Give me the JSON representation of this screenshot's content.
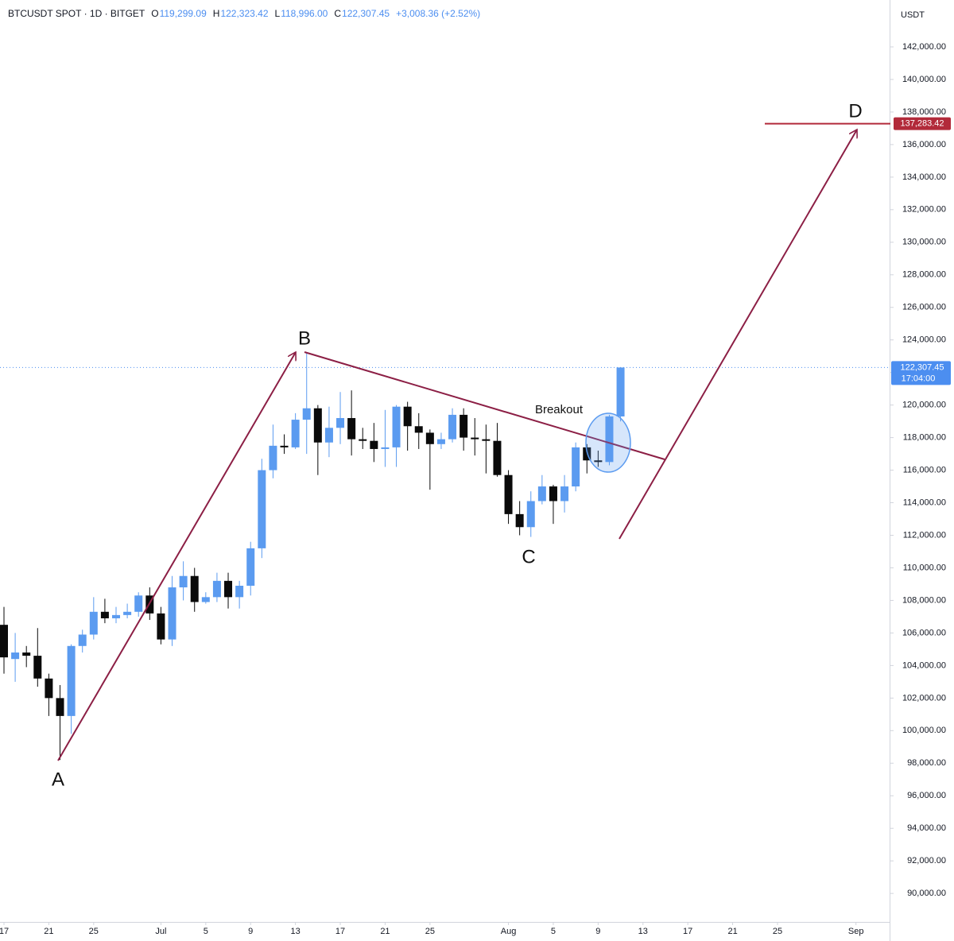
{
  "chart_data": {
    "type": "candlestick",
    "title": "BTCUSDT SPOT · 1D · BITGET",
    "ohlc_header": [
      {
        "label": "O",
        "value": "119,299.09"
      },
      {
        "label": "H",
        "value": "122,323.42"
      },
      {
        "label": "L",
        "value": "118,996.00"
      },
      {
        "label": "C",
        "value": "122,307.45"
      }
    ],
    "change": "+3,008.36 (+2.52%)",
    "y_axis_label": "USDT",
    "up_color": "#5b9bf0",
    "down_color": "#0a0a0a",
    "x": [
      "06-17",
      "06-18",
      "06-19",
      "06-20",
      "06-21",
      "06-22",
      "06-23",
      "06-24",
      "06-25",
      "06-26",
      "06-27",
      "06-28",
      "06-29",
      "06-30",
      "07-01",
      "07-02",
      "07-03",
      "07-04",
      "07-05",
      "07-06",
      "07-07",
      "07-08",
      "07-09",
      "07-10",
      "07-11",
      "07-12",
      "07-13",
      "07-14",
      "07-15",
      "07-16",
      "07-17",
      "07-18",
      "07-19",
      "07-20",
      "07-21",
      "07-22",
      "07-23",
      "07-24",
      "07-25",
      "07-26",
      "07-27",
      "07-28",
      "07-29",
      "07-30",
      "07-31",
      "08-01",
      "08-02",
      "08-03",
      "08-04",
      "08-05",
      "08-06",
      "08-07",
      "08-08",
      "08-09",
      "08-10",
      "08-11"
    ],
    "open": [
      106500,
      104400,
      104800,
      104600,
      103200,
      102000,
      100900,
      105200,
      105900,
      107300,
      106900,
      107100,
      107300,
      108300,
      107200,
      105600,
      108800,
      109500,
      107900,
      108200,
      109200,
      108200,
      108900,
      111200,
      116000,
      117500,
      117400,
      119100,
      119800,
      117700,
      118600,
      119200,
      117900,
      117800,
      117300,
      117400,
      119900,
      118700,
      118300,
      117600,
      117900,
      119400,
      118000,
      117900,
      117800,
      115700,
      113300,
      112500,
      114100,
      115000,
      114100,
      115000,
      117400,
      116600,
      116500,
      119299.09
    ],
    "high": [
      107600,
      106000,
      105200,
      106300,
      103500,
      102800,
      105300,
      106200,
      108200,
      108100,
      107600,
      107800,
      108500,
      108800,
      107600,
      109500,
      110400,
      110000,
      108500,
      109700,
      109700,
      109200,
      111600,
      116700,
      118800,
      118200,
      119500,
      123200,
      120000,
      119900,
      120800,
      120900,
      118600,
      118900,
      119700,
      120000,
      120200,
      119500,
      118500,
      118300,
      119800,
      119800,
      119200,
      118800,
      118900,
      116000,
      114100,
      114700,
      115700,
      115100,
      115700,
      117700,
      117600,
      117200,
      119400,
      122323.42
    ],
    "low": [
      103500,
      103000,
      103900,
      102700,
      100900,
      98200,
      99800,
      104800,
      105600,
      106600,
      106600,
      106900,
      107000,
      106800,
      105300,
      105200,
      108000,
      107300,
      107800,
      107900,
      107500,
      107500,
      108300,
      110600,
      115500,
      117000,
      117300,
      117000,
      115700,
      116800,
      117600,
      116900,
      117300,
      116500,
      116200,
      116200,
      117200,
      117300,
      114800,
      117300,
      117700,
      117200,
      116900,
      115800,
      115600,
      112700,
      112000,
      111900,
      113900,
      112700,
      113400,
      114700,
      115800,
      116200,
      116300,
      118996.0
    ],
    "close": [
      104500,
      104800,
      104600,
      103200,
      102000,
      100900,
      105200,
      105900,
      107300,
      106900,
      107100,
      107300,
      108300,
      107200,
      105600,
      108800,
      109500,
      107900,
      108200,
      109200,
      108200,
      108900,
      111200,
      116000,
      117500,
      117400,
      119100,
      119800,
      117700,
      118600,
      119200,
      117900,
      117800,
      117300,
      117400,
      119900,
      118700,
      118300,
      117600,
      117900,
      119400,
      118000,
      117900,
      117800,
      115700,
      113300,
      112500,
      114100,
      115000,
      114100,
      115000,
      117400,
      116600,
      116500,
      119300,
      122307.45
    ],
    "xlim": [
      "06-17",
      "09-04"
    ],
    "xticks": [
      {
        "value": "06-17",
        "label": "17"
      },
      {
        "value": "06-21",
        "label": "21"
      },
      {
        "value": "06-25",
        "label": "25"
      },
      {
        "value": "07-01",
        "label": "Jul"
      },
      {
        "value": "07-05",
        "label": "5"
      },
      {
        "value": "07-09",
        "label": "9"
      },
      {
        "value": "07-13",
        "label": "13"
      },
      {
        "value": "07-17",
        "label": "17"
      },
      {
        "value": "07-21",
        "label": "21"
      },
      {
        "value": "07-25",
        "label": "25"
      },
      {
        "value": "08-01",
        "label": "Aug"
      },
      {
        "value": "08-05",
        "label": "5"
      },
      {
        "value": "08-09",
        "label": "9"
      },
      {
        "value": "08-13",
        "label": "13"
      },
      {
        "value": "08-17",
        "label": "17"
      },
      {
        "value": "08-21",
        "label": "21"
      },
      {
        "value": "08-25",
        "label": "25"
      },
      {
        "value": "09-01",
        "label": "Sep"
      }
    ],
    "ylim": [
      88250,
      144880
    ],
    "yticks": [
      {
        "value": 90000,
        "label": "90,000.00"
      },
      {
        "value": 92000,
        "label": "92,000.00"
      },
      {
        "value": 94000,
        "label": "94,000.00"
      },
      {
        "value": 96000,
        "label": "96,000.00"
      },
      {
        "value": 98000,
        "label": "98,000.00"
      },
      {
        "value": 100000,
        "label": "100,000.00"
      },
      {
        "value": 102000,
        "label": "102,000.00"
      },
      {
        "value": 104000,
        "label": "104,000.00"
      },
      {
        "value": 106000,
        "label": "106,000.00"
      },
      {
        "value": 108000,
        "label": "108,000.00"
      },
      {
        "value": 110000,
        "label": "110,000.00"
      },
      {
        "value": 112000,
        "label": "112,000.00"
      },
      {
        "value": 114000,
        "label": "114,000.00"
      },
      {
        "value": 116000,
        "label": "116,000.00"
      },
      {
        "value": 118000,
        "label": "118,000.00"
      },
      {
        "value": 120000,
        "label": "120,000.00"
      },
      {
        "value": 122000,
        "label": "122,000.00"
      },
      {
        "value": 124000,
        "label": "124,000.00"
      },
      {
        "value": 126000,
        "label": "126,000.00"
      },
      {
        "value": 128000,
        "label": "128,000.00"
      },
      {
        "value": 130000,
        "label": "130,000.00"
      },
      {
        "value": 132000,
        "label": "132,000.00"
      },
      {
        "value": 134000,
        "label": "134,000.00"
      },
      {
        "value": 136000,
        "label": "136,000.00"
      },
      {
        "value": 138000,
        "label": "138,000.00"
      },
      {
        "value": 140000,
        "label": "140,000.00"
      },
      {
        "value": 142000,
        "label": "142,000.00"
      }
    ],
    "last_price": {
      "value": 122307.45,
      "label": "122,307.45",
      "countdown": "17:04:00",
      "color": "#4c8ef0"
    },
    "target": {
      "value": 137283.42,
      "label": "137,283.42",
      "color": "#b22a3a"
    },
    "annotations": {
      "a": "A",
      "b": "B",
      "c": "C",
      "d": "D",
      "breakout": "Breakout"
    }
  }
}
